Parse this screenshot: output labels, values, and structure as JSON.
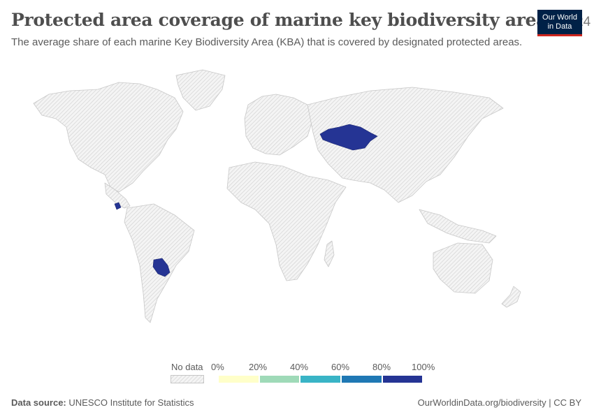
{
  "header": {
    "title": "Protected area coverage of marine key biodiversity areas",
    "year": "2024",
    "subtitle": "The average share of each marine Key Biodiversity Area (KBA) that is covered by designated protected areas."
  },
  "logo": {
    "line1": "Our World",
    "line2": "in Data",
    "bg_color": "#002147",
    "accent_color": "#ce261e"
  },
  "map": {
    "no_data_fill": "hatched-gray",
    "highlighted_regions": [
      {
        "name": "Kazakhstan",
        "bin": "80%-100%"
      },
      {
        "name": "Paraguay",
        "bin": "80%-100%"
      },
      {
        "name": "Costa Rica",
        "bin": "80%-100%"
      }
    ]
  },
  "legend": {
    "no_data_label": "No data",
    "tick_labels": [
      "0%",
      "20%",
      "40%",
      "60%",
      "80%",
      "100%"
    ],
    "bins": [
      {
        "range": "0%-20%",
        "color": "#ffffc9"
      },
      {
        "range": "20%-40%",
        "color": "#9fdab8"
      },
      {
        "range": "40%-60%",
        "color": "#39b4c6"
      },
      {
        "range": "60%-80%",
        "color": "#1f78b4"
      },
      {
        "range": "80%-100%",
        "color": "#253494"
      }
    ]
  },
  "footer": {
    "source_label": "Data source:",
    "source_text": "UNESCO Institute for Statistics",
    "link_text": "OurWorldinData.org/biodiversity | CC BY"
  }
}
